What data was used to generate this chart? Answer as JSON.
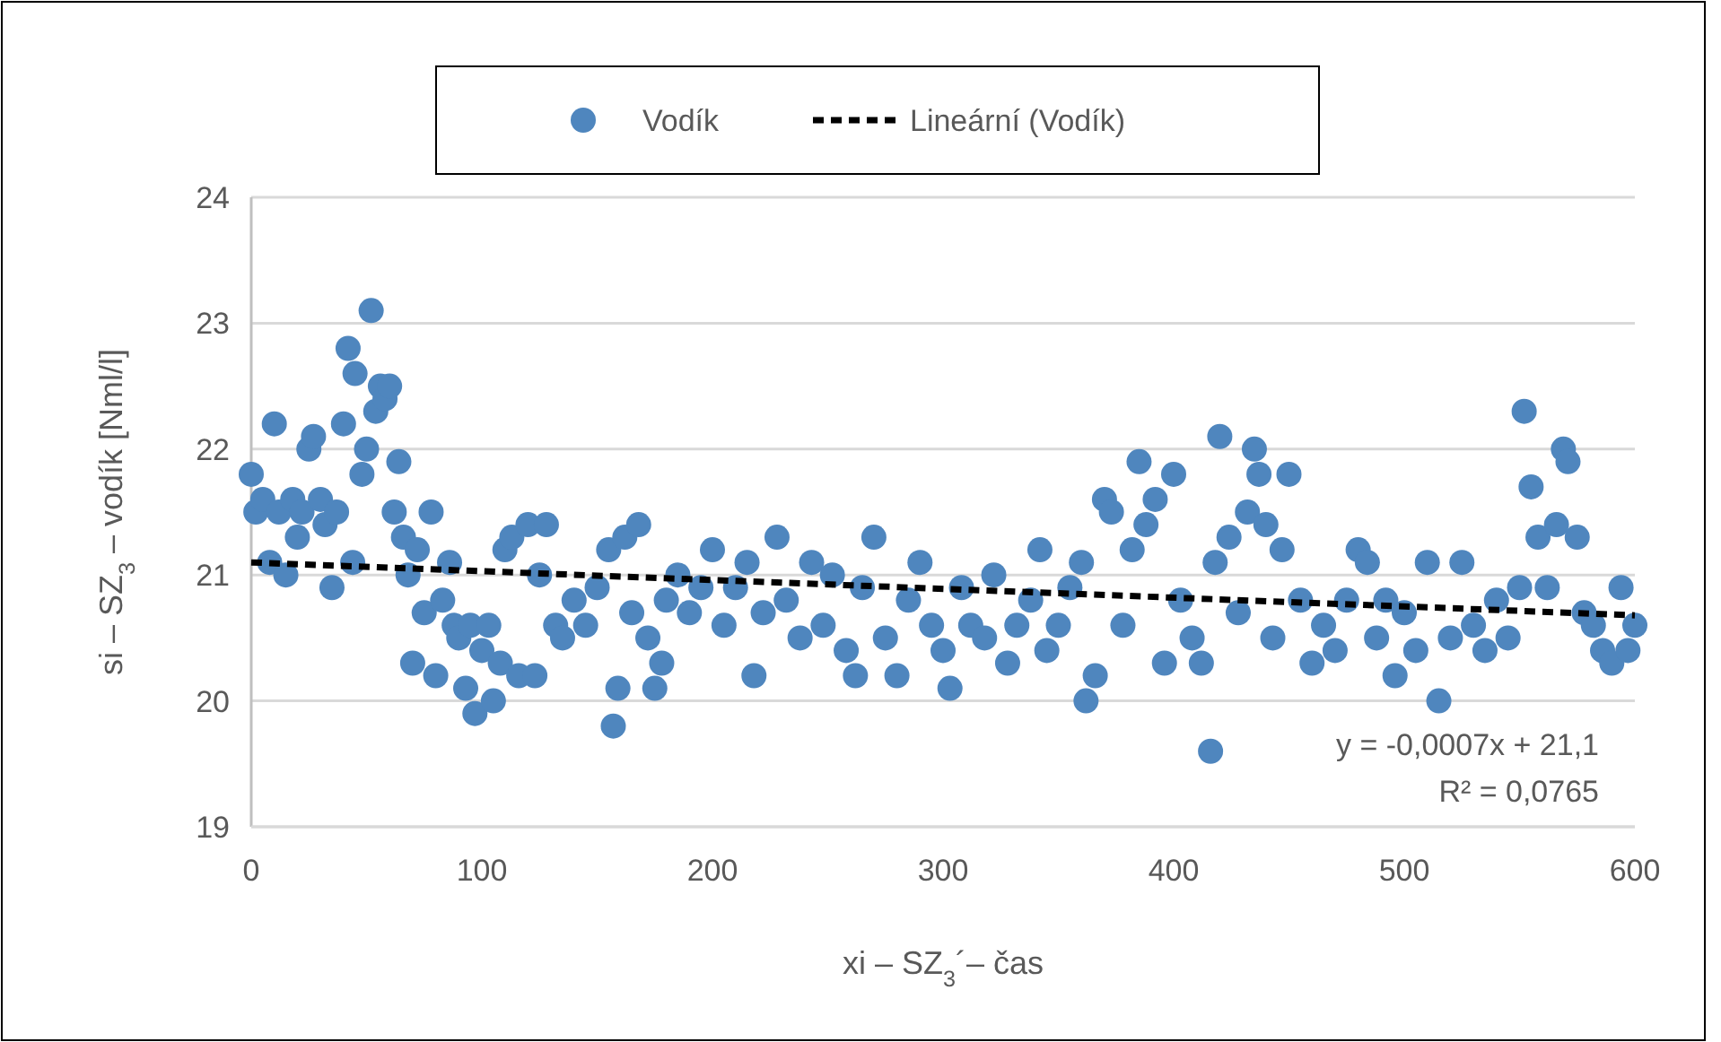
{
  "chart_data": {
    "type": "scatter",
    "xlabel": "xi – SZ$_{3}$´– čas",
    "ylabel": "si – SZ$_{3}$ – vodík [Nml/l]",
    "xlim": [
      0,
      600
    ],
    "xticks": [
      0,
      100,
      200,
      300,
      400,
      500,
      600
    ],
    "ylim": [
      19,
      24
    ],
    "yticks": [
      19,
      20,
      21,
      22,
      23,
      24
    ],
    "grid": "y",
    "legend": "top",
    "marker": "circle",
    "annotations": [
      "y = -0,0007x + 21,1",
      "R² = 0,0765"
    ],
    "series": [
      {
        "name": "Vodík",
        "color": "#4f86be",
        "x": [
          0,
          2,
          5,
          8,
          10,
          12,
          15,
          18,
          20,
          22,
          25,
          27,
          30,
          32,
          35,
          37,
          40,
          42,
          44,
          45,
          48,
          50,
          52,
          54,
          56,
          58,
          60,
          62,
          64,
          66,
          68,
          70,
          72,
          75,
          78,
          80,
          83,
          86,
          88,
          90,
          93,
          95,
          97,
          100,
          103,
          105,
          108,
          110,
          113,
          116,
          120,
          123,
          125,
          128,
          132,
          135,
          140,
          145,
          150,
          155,
          157,
          159,
          162,
          165,
          168,
          172,
          175,
          178,
          180,
          185,
          190,
          195,
          200,
          205,
          210,
          215,
          218,
          222,
          228,
          232,
          238,
          243,
          248,
          252,
          258,
          262,
          265,
          270,
          275,
          280,
          285,
          290,
          295,
          300,
          303,
          308,
          312,
          318,
          322,
          328,
          332,
          338,
          342,
          345,
          350,
          355,
          360,
          362,
          366,
          370,
          373,
          378,
          382,
          385,
          388,
          392,
          396,
          400,
          403,
          408,
          412,
          416,
          418,
          420,
          424,
          428,
          432,
          435,
          437,
          440,
          443,
          447,
          450,
          455,
          460,
          465,
          470,
          475,
          480,
          484,
          488,
          492,
          496,
          500,
          505,
          510,
          515,
          520,
          525,
          530,
          535,
          540,
          545,
          550,
          552,
          555,
          558,
          562,
          566,
          569,
          571,
          575,
          578,
          582,
          586,
          590,
          594,
          597,
          600
        ],
        "values": [
          21.8,
          21.5,
          21.6,
          21.1,
          22.2,
          21.5,
          21.0,
          21.6,
          21.3,
          21.5,
          22.0,
          22.1,
          21.6,
          21.4,
          20.9,
          21.5,
          22.2,
          22.8,
          21.1,
          22.6,
          21.8,
          22.0,
          23.1,
          22.3,
          22.5,
          22.4,
          22.5,
          21.5,
          21.9,
          21.3,
          21.0,
          20.3,
          21.2,
          20.7,
          21.5,
          20.2,
          20.8,
          21.1,
          20.6,
          20.5,
          20.1,
          20.6,
          19.9,
          20.4,
          20.6,
          20.0,
          20.3,
          21.2,
          21.3,
          20.2,
          21.4,
          20.2,
          21.0,
          21.4,
          20.6,
          20.5,
          20.8,
          20.6,
          20.9,
          21.2,
          19.8,
          20.1,
          21.3,
          20.7,
          21.4,
          20.5,
          20.1,
          20.3,
          20.8,
          21.0,
          20.7,
          20.9,
          21.2,
          20.6,
          20.9,
          21.1,
          20.2,
          20.7,
          21.3,
          20.8,
          20.5,
          21.1,
          20.6,
          21.0,
          20.4,
          20.2,
          20.9,
          21.3,
          20.5,
          20.2,
          20.8,
          21.1,
          20.6,
          20.4,
          20.1,
          20.9,
          20.6,
          20.5,
          21.0,
          20.3,
          20.6,
          20.8,
          21.2,
          20.4,
          20.6,
          20.9,
          21.1,
          20.0,
          20.2,
          21.6,
          21.5,
          20.6,
          21.2,
          21.9,
          21.4,
          21.6,
          20.3,
          21.8,
          20.8,
          20.5,
          20.3,
          19.6,
          21.1,
          22.1,
          21.3,
          20.7,
          21.5,
          22.0,
          21.8,
          21.4,
          20.5,
          21.2,
          21.8,
          20.8,
          20.3,
          20.6,
          20.4,
          20.8,
          21.2,
          21.1,
          20.5,
          20.8,
          20.2,
          20.7,
          20.4,
          21.1,
          20.0,
          20.5,
          21.1,
          20.6,
          20.4,
          20.8,
          20.5,
          20.9,
          22.3,
          21.7,
          21.3,
          20.9,
          21.4,
          22.0,
          21.9,
          21.3,
          20.7,
          20.6,
          20.4,
          20.3,
          20.9,
          20.4,
          20.6
        ]
      },
      {
        "name": "Lineární (Vodík)",
        "type": "line",
        "color": "#000000",
        "line_style": "dashed",
        "marker": "none",
        "x": [
          0,
          600
        ],
        "values": [
          21.1,
          20.68
        ]
      }
    ]
  }
}
